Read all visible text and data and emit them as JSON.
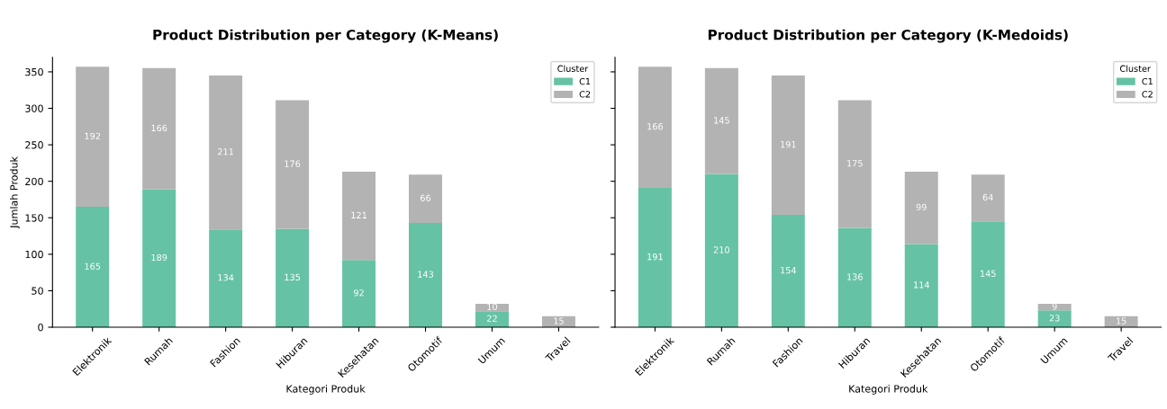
{
  "chart_data": [
    {
      "type": "bar",
      "title": "Product Distribution per Category (K-Means)",
      "xlabel": "Kategori Produk",
      "ylabel": "Jumlah Produk",
      "legend_title": "Cluster",
      "legend": "top right",
      "stacked": true,
      "grid": false,
      "categories": [
        "Elektronik",
        "Rumah",
        "Fashion",
        "Hiburan",
        "Kesehatan",
        "Otomotif",
        "Umum",
        "Travel"
      ],
      "ylim": [
        0,
        370
      ],
      "yticks": [
        0,
        50,
        100,
        150,
        200,
        250,
        300,
        350
      ],
      "series": [
        {
          "name": "C1",
          "color": "#66c2a5",
          "values": [
            165,
            189,
            134,
            135,
            92,
            143,
            22,
            0
          ],
          "value_labels": [
            "165",
            "189",
            "134",
            "135",
            "92",
            "143",
            "22",
            null
          ]
        },
        {
          "name": "C2",
          "color": "#b3b3b3",
          "values": [
            192,
            166,
            211,
            176,
            121,
            66,
            10,
            15
          ],
          "value_labels": [
            "192",
            "166",
            "211",
            "176",
            "121",
            "66",
            "10",
            "15"
          ]
        }
      ]
    },
    {
      "type": "bar",
      "title": "Product Distribution per Category (K-Medoids)",
      "xlabel": "Kategori Produk",
      "legend_title": "Cluster",
      "legend": "top right",
      "stacked": true,
      "grid": false,
      "tick_labels": "x",
      "categories": [
        "Elektronik",
        "Rumah",
        "Fashion",
        "Hiburan",
        "Kesehatan",
        "Otomotif",
        "Umum",
        "Travel"
      ],
      "ylim": [
        0,
        370
      ],
      "yticks": [
        0,
        50,
        100,
        150,
        200,
        250,
        300,
        350
      ],
      "series": [
        {
          "name": "C1",
          "color": "#66c2a5",
          "values": [
            191,
            210,
            154,
            136,
            114,
            145,
            23,
            0
          ],
          "value_labels": [
            "191",
            "210",
            "154",
            "136",
            "114",
            "145",
            "23",
            null
          ]
        },
        {
          "name": "C2",
          "color": "#b3b3b3",
          "values": [
            166,
            145,
            191,
            175,
            99,
            64,
            9,
            15
          ],
          "value_labels": [
            "166",
            "145",
            "191",
            "175",
            "99",
            "64",
            "9",
            "15"
          ]
        }
      ]
    }
  ]
}
